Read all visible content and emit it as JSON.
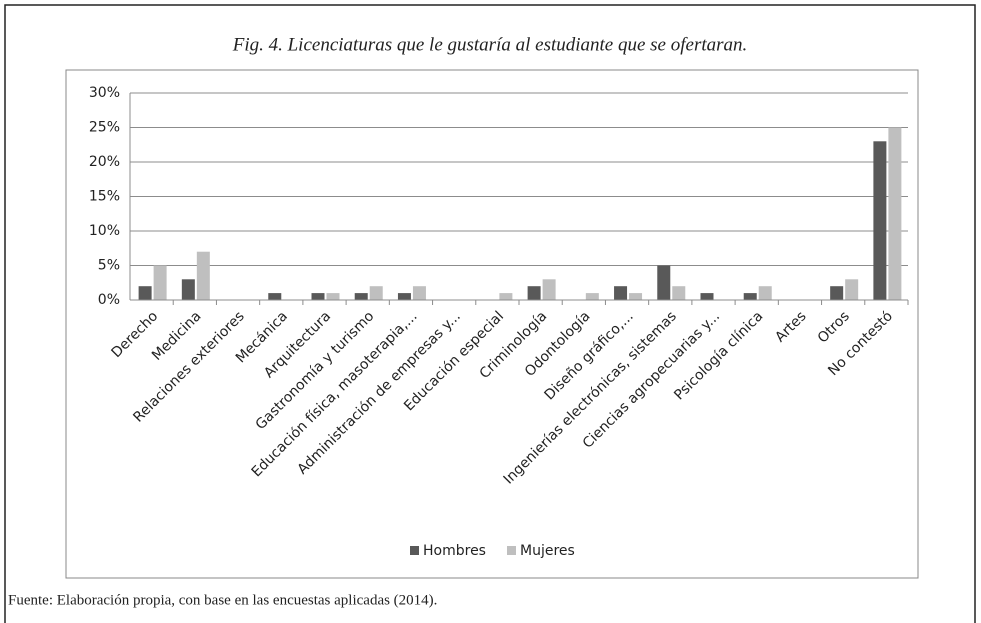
{
  "chart_data": {
    "type": "bar",
    "title": "Fig. 4. Licenciaturas que le gustaría al estudiante que se ofertaran.",
    "categories": [
      "Derecho",
      "Medicina",
      "Relaciones exteriores",
      "Mecánica",
      "Arquitectura",
      "Gastronomía y turismo",
      "Educación física, masoterapia,...",
      "Administración de empresas y...",
      "Educación especial",
      "Criminología",
      "Odontología",
      "Diseño gráfico,...",
      "Ingenierías electrónicas, sistemas",
      "Ciencias agropecuarias y...",
      "Psicología clínica",
      "Artes",
      "Otros",
      "No contestó"
    ],
    "series": [
      {
        "name": "Hombres",
        "color": "#595959",
        "values": [
          2,
          3,
          0,
          1,
          1,
          1,
          1,
          0,
          0,
          2,
          0,
          2,
          5,
          1,
          1,
          0,
          2,
          23
        ]
      },
      {
        "name": "Mujeres",
        "color": "#bfbfbf",
        "values": [
          5,
          7,
          0,
          0,
          1,
          2,
          2,
          0,
          1,
          3,
          1,
          1,
          2,
          0,
          2,
          0,
          3,
          25
        ]
      }
    ],
    "ylim": [
      0,
      30
    ],
    "yticks": [
      {
        "value": 0,
        "label": "0%"
      },
      {
        "value": 5,
        "label": "5%"
      },
      {
        "value": 10,
        "label": "10%"
      },
      {
        "value": 15,
        "label": "15%"
      },
      {
        "value": 20,
        "label": "20%"
      },
      {
        "value": 25,
        "label": "25%"
      },
      {
        "value": 30,
        "label": "30%"
      }
    ],
    "grid": true,
    "legend": "bottom",
    "source": "Fuente: Elaboración propia, con base en las encuestas aplicadas (2014)."
  }
}
